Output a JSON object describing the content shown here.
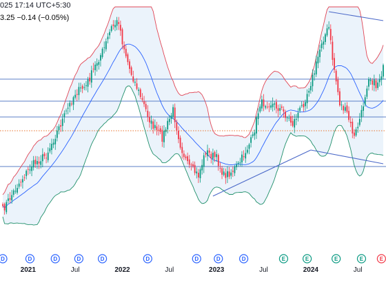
{
  "header": {
    "time_text": "025 17:14 UTC+5:30",
    "change_text": "3.25  −0.14 (−0.05%)"
  },
  "colors": {
    "up": "#089981",
    "down": "#f23645",
    "upper_band": "#e04555",
    "lower_band": "#1f8f6a",
    "basis": "#2962ff",
    "band_fill": "#dbe9f7",
    "hline": "#5b7fc7",
    "dotted": "#e8702a",
    "trend": "#4a68c8",
    "dividend": "#2962ff",
    "earnings": "#089981",
    "earnings_alt": "#f23645"
  },
  "chart_data": {
    "type": "candlestick",
    "title": "",
    "xlabel": "",
    "ylabel": "",
    "x_ticks": [
      {
        "label": "2021",
        "week": 14,
        "bold": true
      },
      {
        "label": "Jul",
        "week": 40,
        "bold": false
      },
      {
        "label": "2022",
        "week": 66,
        "bold": true
      },
      {
        "label": "Jul",
        "week": 92,
        "bold": false
      },
      {
        "label": "2023",
        "week": 118,
        "bold": true
      },
      {
        "label": "Jul",
        "week": 144,
        "bold": false
      },
      {
        "label": "2024",
        "week": 170,
        "bold": true
      },
      {
        "label": "Jul",
        "week": 196,
        "bold": false
      }
    ],
    "close_series": [
      [
        0,
        305
      ],
      [
        8,
        270
      ],
      [
        16,
        240
      ],
      [
        24,
        225
      ],
      [
        32,
        180
      ],
      [
        40,
        135
      ],
      [
        46,
        125
      ],
      [
        52,
        90
      ],
      [
        56,
        70
      ],
      [
        60,
        40
      ],
      [
        64,
        30
      ],
      [
        66,
        60
      ],
      [
        70,
        100
      ],
      [
        76,
        140
      ],
      [
        82,
        180
      ],
      [
        88,
        200
      ],
      [
        94,
        160
      ],
      [
        98,
        210
      ],
      [
        102,
        240
      ],
      [
        108,
        255
      ],
      [
        112,
        220
      ],
      [
        118,
        230
      ],
      [
        122,
        255
      ],
      [
        126,
        250
      ],
      [
        130,
        240
      ],
      [
        134,
        220
      ],
      [
        138,
        200
      ],
      [
        142,
        150
      ],
      [
        148,
        150
      ],
      [
        154,
        160
      ],
      [
        160,
        180
      ],
      [
        166,
        150
      ],
      [
        172,
        105
      ],
      [
        176,
        60
      ],
      [
        180,
        40
      ],
      [
        182,
        85
      ],
      [
        186,
        150
      ],
      [
        190,
        165
      ],
      [
        194,
        200
      ],
      [
        198,
        165
      ],
      [
        202,
        110
      ],
      [
        206,
        125
      ],
      [
        210,
        100
      ]
    ],
    "horizontal_levels": [
      115,
      147,
      170,
      242
    ],
    "dotted_level": 190,
    "trendlines": [
      {
        "from": [
          116,
          285
        ],
        "to": [
          170,
          218
        ]
      },
      {
        "from": [
          170,
          218
        ],
        "to": [
          210,
          238
        ]
      },
      {
        "from": [
          180,
          17
        ],
        "to": [
          210,
          30
        ]
      }
    ],
    "dividend_weeks": [
      0,
      15,
      29,
      42,
      55,
      80,
      107,
      119,
      133
    ],
    "earnings_weeks": [
      155,
      168,
      184,
      198
    ],
    "earnings_alt_weeks": [
      209
    ],
    "event_letter_dividend": "D",
    "event_letter_earnings": "E"
  }
}
